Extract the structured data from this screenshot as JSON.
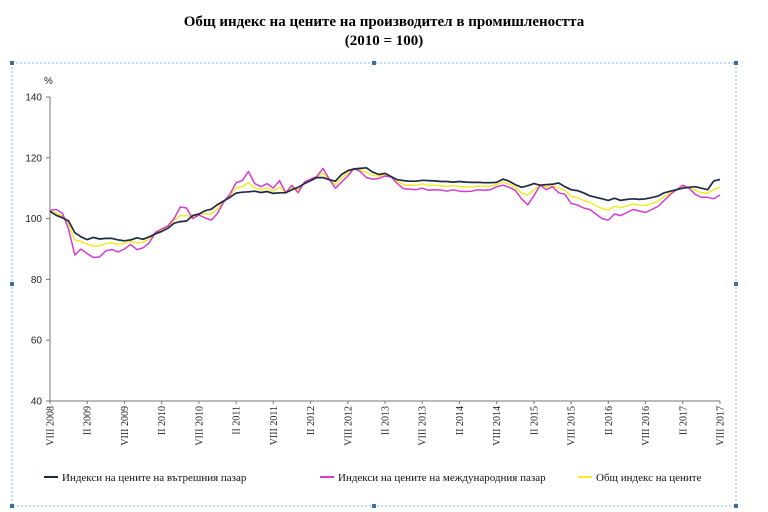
{
  "chart_data": {
    "type": "line",
    "title": "Общ индекс на цените на производител в промишлеността",
    "subtitle": "(2010 = 100)",
    "ylabel": "%",
    "ylim": [
      40,
      140
    ],
    "yticks": [
      40,
      60,
      80,
      100,
      120,
      140
    ],
    "grid": false,
    "legend_position": "bottom",
    "xtick_labels": [
      {
        "label": "VIII 2008",
        "index": 0
      },
      {
        "label": "II 2009",
        "index": 6
      },
      {
        "label": "VIII 2009",
        "index": 12
      },
      {
        "label": "II 2010",
        "index": 18
      },
      {
        "label": "VIII 2010",
        "index": 24
      },
      {
        "label": "II 2011",
        "index": 30
      },
      {
        "label": "VIII 2011",
        "index": 36
      },
      {
        "label": "II 2012",
        "index": 42
      },
      {
        "label": "VIII 2012",
        "index": 48
      },
      {
        "label": "II 2013",
        "index": 54
      },
      {
        "label": "VIII 2013",
        "index": 60
      },
      {
        "label": "II 2014",
        "index": 66
      },
      {
        "label": "VIII 2014",
        "index": 72
      },
      {
        "label": "II 2015",
        "index": 78
      },
      {
        "label": "VIII 2015",
        "index": 84
      },
      {
        "label": "II 2016",
        "index": 90
      },
      {
        "label": "VIII 2016",
        "index": 96
      },
      {
        "label": "II 2017",
        "index": 102
      },
      {
        "label": "VIII 2017",
        "index": 108
      }
    ],
    "series": [
      {
        "name": "Индекси на цените на вътрешния пазар",
        "color": "#1f2a44",
        "values": [
          102.4,
          101.1,
          100.3,
          99.2,
          95.4,
          94.0,
          93.1,
          93.8,
          93.3,
          93.5,
          93.5,
          93.0,
          92.7,
          93.0,
          93.7,
          93.2,
          94.0,
          95.0,
          95.8,
          96.8,
          98.5,
          99.0,
          99.2,
          101.0,
          101.5,
          102.6,
          103.1,
          104.6,
          105.8,
          107.0,
          108.4,
          108.7,
          108.8,
          109.0,
          108.6,
          108.9,
          108.3,
          108.5,
          108.5,
          109.5,
          110.3,
          111.5,
          112.5,
          113.5,
          113.5,
          112.8,
          112.3,
          114.5,
          115.8,
          116.3,
          116.5,
          116.7,
          115.3,
          114.5,
          114.9,
          113.8,
          112.8,
          112.5,
          112.3,
          112.3,
          112.6,
          112.5,
          112.4,
          112.2,
          112.2,
          112.0,
          112.2,
          112.0,
          111.9,
          111.9,
          111.8,
          111.8,
          111.9,
          113.0,
          112.3,
          111.2,
          110.3,
          110.8,
          111.5,
          111.0,
          111.2,
          111.3,
          111.7,
          110.5,
          109.5,
          109.2,
          108.5,
          107.5,
          107.0,
          106.5,
          106.0,
          106.7,
          106.0,
          106.3,
          106.5,
          106.3,
          106.5,
          106.9,
          107.4,
          108.5,
          109.0,
          109.5,
          110.0,
          110.3,
          110.5,
          110.0,
          109.5,
          112.4,
          112.9
        ]
      },
      {
        "name": "Индекси на цените на международния пазар",
        "color": "#d63bd0",
        "values": [
          102.7,
          103.0,
          101.8,
          96.5,
          88.0,
          90.0,
          88.5,
          87.2,
          87.4,
          89.4,
          89.8,
          89.0,
          90.0,
          91.5,
          89.8,
          90.4,
          92.0,
          95.5,
          96.6,
          97.6,
          100.0,
          103.8,
          103.5,
          100.0,
          101.2,
          100.2,
          99.5,
          101.7,
          105.5,
          108.0,
          111.8,
          112.5,
          115.5,
          111.5,
          110.5,
          111.5,
          110.0,
          112.5,
          108.5,
          111.0,
          108.5,
          112.0,
          113.0,
          113.8,
          116.5,
          113.0,
          110.0,
          112.0,
          114.0,
          116.5,
          115.5,
          113.5,
          113.0,
          113.2,
          114.0,
          113.7,
          111.5,
          109.8,
          109.7,
          109.5,
          110.0,
          109.3,
          109.5,
          109.4,
          109.0,
          109.5,
          109.0,
          108.9,
          109.0,
          109.5,
          109.3,
          109.5,
          110.5,
          111.0,
          110.3,
          109.3,
          106.5,
          104.5,
          107.5,
          111.0,
          109.5,
          110.5,
          108.5,
          108.0,
          105.0,
          104.5,
          103.5,
          103.0,
          101.5,
          100.0,
          99.5,
          101.5,
          101.0,
          102.0,
          103.0,
          102.5,
          102.0,
          103.0,
          104.0,
          106.0,
          108.0,
          109.5,
          111.0,
          110.0,
          108.0,
          107.0,
          107.0,
          106.5,
          107.8
        ]
      },
      {
        "name": "Общ индекс на цените",
        "color": "#f2ea2a",
        "values": [
          102.5,
          101.8,
          100.8,
          98.2,
          93.0,
          92.5,
          91.5,
          91.0,
          91.0,
          91.8,
          92.0,
          91.5,
          91.8,
          92.5,
          92.0,
          92.2,
          93.2,
          95.3,
          96.2,
          97.3,
          99.5,
          101.0,
          101.0,
          100.6,
          101.4,
          101.6,
          101.5,
          103.3,
          105.8,
          107.5,
          110.0,
          110.5,
          111.8,
          110.1,
          109.5,
          110.1,
          109.0,
          110.3,
          108.5,
          110.2,
          109.4,
          111.7,
          112.7,
          113.6,
          115.0,
          112.9,
          111.2,
          113.3,
          115.0,
          116.4,
          116.0,
          115.2,
          114.2,
          113.9,
          114.5,
          113.8,
          112.2,
          111.2,
          111.0,
          111.0,
          111.4,
          110.9,
          111.0,
          110.8,
          110.6,
          110.8,
          110.6,
          110.4,
          110.5,
          110.7,
          110.6,
          110.7,
          111.2,
          112.0,
          111.3,
          110.3,
          108.4,
          107.7,
          109.5,
          111.0,
          110.4,
          110.9,
          110.1,
          109.3,
          107.3,
          106.9,
          106.0,
          105.3,
          104.3,
          103.3,
          102.8,
          104.1,
          103.6,
          104.2,
          104.8,
          104.4,
          104.3,
          105.0,
          105.7,
          107.3,
          108.5,
          109.5,
          110.5,
          110.2,
          109.3,
          108.5,
          108.3,
          109.5,
          110.4
        ]
      }
    ]
  }
}
